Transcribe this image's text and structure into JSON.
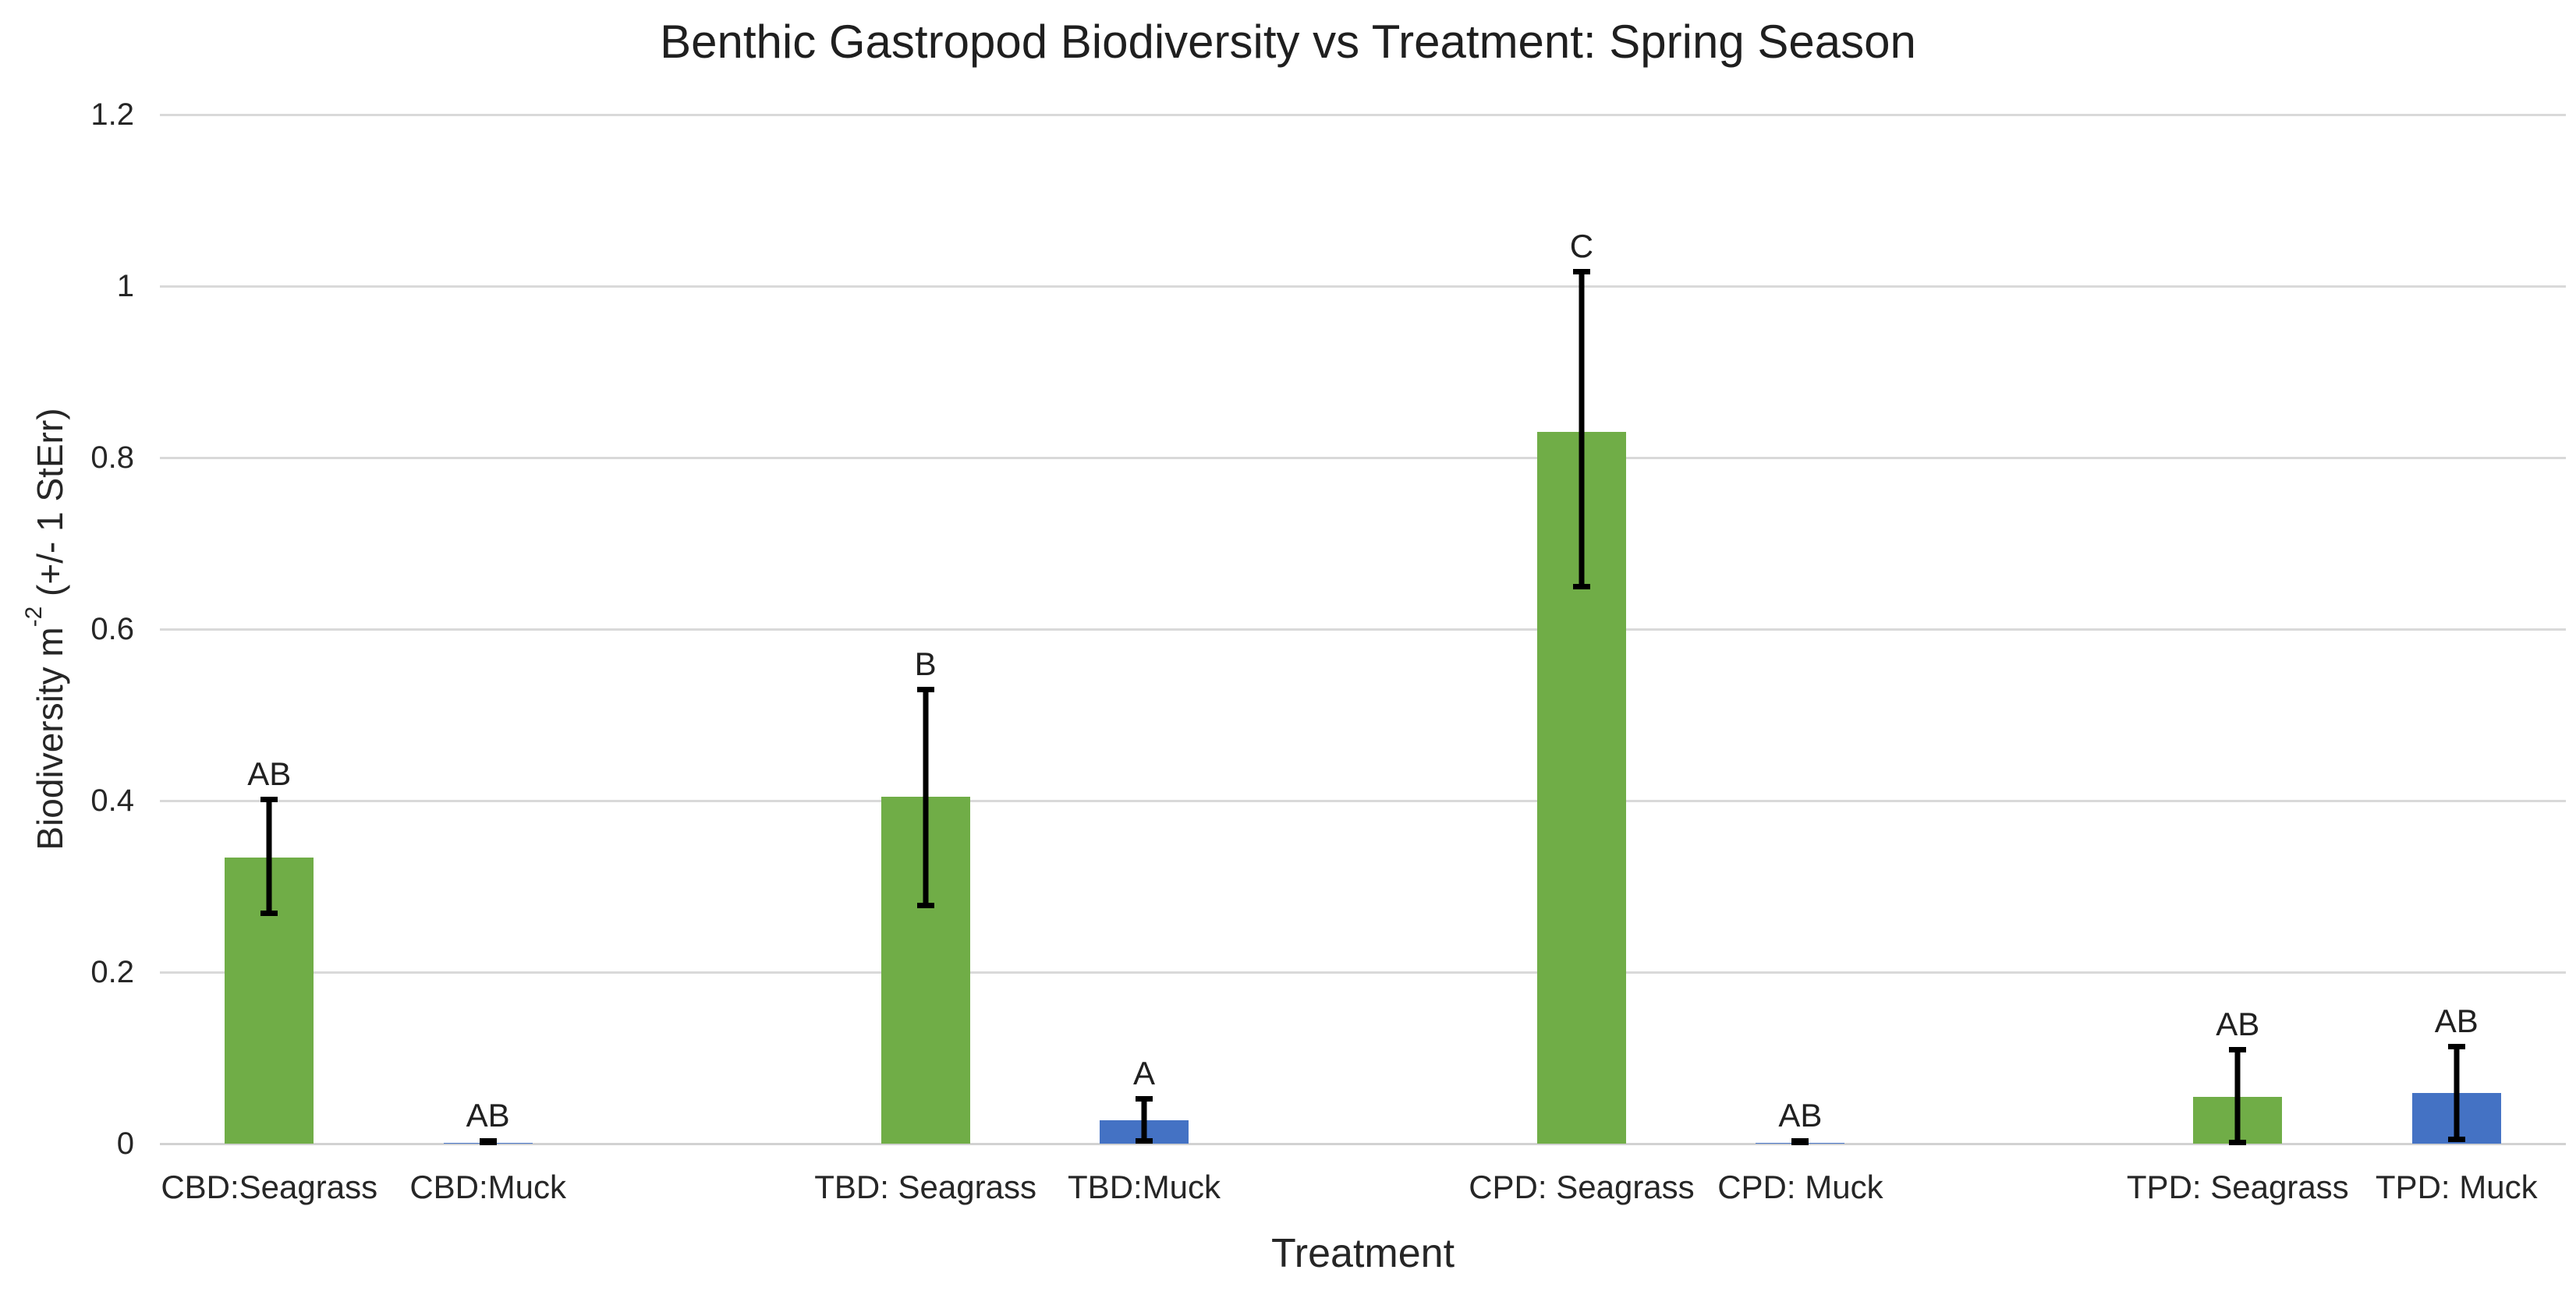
{
  "title": "Benthic Gastropod Biodiversity vs Treatment: Spring Season",
  "x_axis": {
    "title": "Treatment"
  },
  "y_axis": {
    "title_full": "Biodiversity m⁻² (+/- 1 StErr)",
    "title_prefix": "Biodiversity m",
    "title_superscript": "-2",
    "title_suffix": " (+/- 1 StErr)"
  },
  "chart_data": {
    "type": "bar",
    "title": "Benthic Gastropod Biodiversity vs Treatment: Spring Season",
    "xlabel": "Treatment",
    "ylabel": "Biodiversity m⁻² (+/- 1 StErr)",
    "ylim": [
      0,
      1.2
    ],
    "yticks": [
      0,
      0.2,
      0.4,
      0.6,
      0.8,
      1,
      1.2
    ],
    "ytick_labels": [
      "0",
      "0.2",
      "0.4",
      "0.6",
      "0.8",
      "1",
      "1.2"
    ],
    "grid": true,
    "legend": false,
    "n_slots": 11,
    "categories": [
      "CBD:Seagrass",
      "CBD:Muck",
      "TBD: Seagrass",
      "TBD:Muck",
      "CPD: Seagrass",
      "CPD: Muck",
      "TPD: Seagrass",
      "TPD: Muck"
    ],
    "bars": [
      {
        "category": "CBD:Seagrass",
        "slot": 0,
        "value": 0.334,
        "err_low": 0.268,
        "err_high": 0.402,
        "sig_label": "AB",
        "color": "#70AD47"
      },
      {
        "category": "CBD:Muck",
        "slot": 1,
        "value": 0.001,
        "err_low": 0.001,
        "err_high": 0.004,
        "sig_label": "AB",
        "color": "#4472C4"
      },
      {
        "category": "TBD: Seagrass",
        "slot": 3,
        "value": 0.405,
        "err_low": 0.277,
        "err_high": 0.53,
        "sig_label": "B",
        "color": "#70AD47"
      },
      {
        "category": "TBD:Muck",
        "slot": 4,
        "value": 0.027,
        "err_low": 0.003,
        "err_high": 0.053,
        "sig_label": "A",
        "color": "#4472C4"
      },
      {
        "category": "CPD: Seagrass",
        "slot": 6,
        "value": 0.83,
        "err_low": 0.649,
        "err_high": 1.017,
        "sig_label": "C",
        "color": "#70AD47"
      },
      {
        "category": "CPD: Muck",
        "slot": 7,
        "value": 0.001,
        "err_low": 0.001,
        "err_high": 0.004,
        "sig_label": "AB",
        "color": "#4472C4"
      },
      {
        "category": "TPD: Seagrass",
        "slot": 9,
        "value": 0.055,
        "err_low": 0.001,
        "err_high": 0.11,
        "sig_label": "AB",
        "color": "#70AD47"
      },
      {
        "category": "TPD: Muck",
        "slot": 10,
        "value": 0.059,
        "err_low": 0.005,
        "err_high": 0.114,
        "sig_label": "AB",
        "color": "#4472C4"
      }
    ],
    "colors": {
      "seagrass_series": "#70AD47",
      "muck_series": "#4472C4",
      "gridline": "#D9D9D9",
      "error_bar": "#000000",
      "text": "#262626"
    },
    "layout": {
      "gridlines_horizontal": true,
      "gap_slot_between_pairs": true
    }
  }
}
